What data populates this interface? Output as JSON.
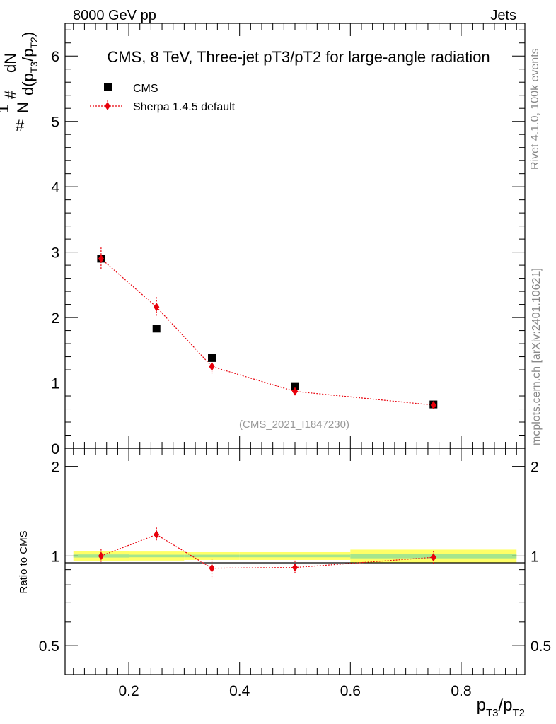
{
  "header": {
    "left": "8000 GeV pp",
    "right": "Jets"
  },
  "side": {
    "rivet": "Rivet 4.1.0,  100k events",
    "mcplots": "mcplots.cern.ch [arXiv:2401.10621]"
  },
  "colors": {
    "cms": "#000000",
    "sherpa": "#e8000b",
    "band_yellow": "#ffff66",
    "band_green": "#a6e68c"
  },
  "chart_data": [
    {
      "type": "scatter",
      "title": "CMS, 8 TeV, Three-jet pT3/pT2 for large-angle radiation",
      "analysis_id": "(CMS_2021_I1847230)",
      "ylabel_parts": {
        "hash1": "#",
        "one": "1",
        "N": "N",
        "hash2": "#",
        "dN": "dN",
        "den_pre": "d(p",
        "sub1": "T3",
        "den_mid": "/p",
        "sub2": "T2",
        "den_post": ")"
      },
      "xlim": [
        0.085,
        0.915
      ],
      "ylim": [
        0,
        6.5
      ],
      "y_ticks": [
        0,
        1,
        2,
        3,
        4,
        5,
        6
      ],
      "y_tick_labels": [
        "0",
        "1",
        "2",
        "3",
        "4",
        "5",
        "6"
      ],
      "legend": [
        "CMS",
        "Sherpa 1.4.5 default"
      ],
      "series": [
        {
          "name": "CMS",
          "x": [
            0.15,
            0.25,
            0.35,
            0.5,
            0.75
          ],
          "y": [
            2.9,
            1.83,
            1.38,
            0.95,
            0.67
          ]
        },
        {
          "name": "Sherpa 1.4.5 default",
          "x": [
            0.15,
            0.25,
            0.35,
            0.5,
            0.75
          ],
          "y": [
            2.9,
            2.16,
            1.25,
            0.87,
            0.66
          ],
          "err": [
            0.17,
            0.15,
            0.11,
            0.06,
            0.04
          ]
        }
      ]
    },
    {
      "type": "scatter",
      "ylabel": "Ratio to CMS",
      "xlabel_parts": {
        "p1": "p",
        "sub1": "T3",
        "mid": "/p",
        "sub2": "T2"
      },
      "xlim": [
        0.085,
        0.915
      ],
      "ylim": [
        0.4,
        2.3
      ],
      "y_scale": "log",
      "y_ticks": [
        0.5,
        1,
        2
      ],
      "y_tick_labels": [
        "0.5",
        "1",
        "2"
      ],
      "x_ticks": [
        0.2,
        0.4,
        0.6,
        0.8
      ],
      "x_tick_labels": [
        "0.2",
        "0.4",
        "0.6",
        "0.8"
      ],
      "band_x_edges": [
        0.1,
        0.2,
        0.3,
        0.4,
        0.6,
        0.9
      ],
      "band_yellow_half": [
        0.04,
        0.035,
        0.03,
        0.03,
        0.05
      ],
      "band_green_half": [
        0.012,
        0.01,
        0.01,
        0.01,
        0.018
      ],
      "series": [
        {
          "name": "Sherpa 1.4.5 default",
          "x": [
            0.15,
            0.25,
            0.35,
            0.5,
            0.75
          ],
          "y": [
            1.0,
            1.18,
            0.91,
            0.915,
            0.99
          ],
          "err": [
            0.055,
            0.065,
            0.07,
            0.05,
            0.05
          ]
        }
      ]
    }
  ]
}
